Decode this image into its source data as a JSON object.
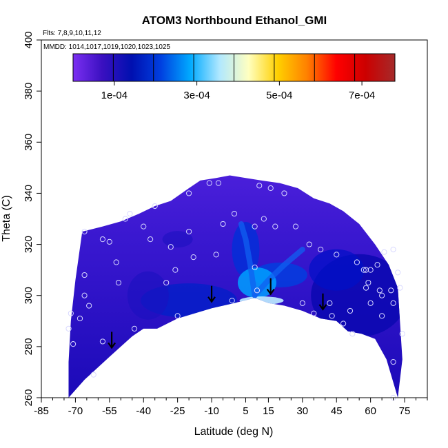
{
  "chart_data": {
    "type": "heatmap",
    "title": "ATOM3 Northbound Ethanol_GMI",
    "annotations": [
      "Flts: 7,8,9,10,11,12",
      "MMDD: 1014,1017,1019,1020,1023,1025"
    ],
    "xlabel": "Latitude (deg N)",
    "ylabel": "Theta (C)",
    "xlim": [
      -85,
      85
    ],
    "ylim": [
      260,
      400
    ],
    "x_ticks": [
      -85,
      -70,
      -55,
      -40,
      -25,
      -10,
      5,
      15,
      30,
      45,
      60,
      75
    ],
    "y_ticks": [
      260,
      280,
      300,
      320,
      340,
      360,
      380,
      400
    ],
    "colorbar": {
      "range": [
        0,
        0.00078
      ],
      "tick_values": [
        0.0001,
        0.0003,
        0.0005,
        0.0007
      ],
      "tick_labels": [
        "1e-04",
        "3e-04",
        "5e-04",
        "7e-04"
      ],
      "colors": [
        "#7b2ff2",
        "#3a10c0",
        "#0010b0",
        "#0040e0",
        "#00aaff",
        "#b0e8ff",
        "#ffffc0",
        "#ffd000",
        "#ff8000",
        "#ff0000",
        "#cc0000",
        "#a52a2a"
      ]
    },
    "domain_boundary": {
      "bottom": [
        [
          -73,
          260
        ],
        [
          -66,
          267
        ],
        [
          -55,
          276
        ],
        [
          -45,
          284
        ],
        [
          -40,
          287
        ],
        [
          -34,
          287
        ],
        [
          -25,
          291
        ],
        [
          -10,
          295
        ],
        [
          0,
          297
        ],
        [
          9,
          299
        ],
        [
          15,
          297
        ],
        [
          22,
          296
        ],
        [
          30,
          294
        ],
        [
          38,
          291
        ],
        [
          45,
          290
        ],
        [
          50,
          286
        ],
        [
          56,
          285
        ],
        [
          62,
          283
        ],
        [
          67,
          275
        ],
        [
          72,
          260
        ]
      ],
      "top": [
        [
          -73,
          274
        ],
        [
          -72,
          290
        ],
        [
          -70,
          306
        ],
        [
          -67,
          325
        ],
        [
          -58,
          327
        ],
        [
          -50,
          329
        ],
        [
          -42,
          332
        ],
        [
          -35,
          335
        ],
        [
          -28,
          337
        ],
        [
          -20,
          342
        ],
        [
          -15,
          345
        ],
        [
          -8,
          346
        ],
        [
          -2,
          347
        ],
        [
          5,
          346
        ],
        [
          12,
          345
        ],
        [
          20,
          344
        ],
        [
          28,
          342
        ],
        [
          35,
          338
        ],
        [
          42,
          336
        ],
        [
          48,
          333
        ],
        [
          55,
          328
        ],
        [
          62,
          320
        ],
        [
          68,
          312
        ],
        [
          72,
          303
        ],
        [
          74,
          275
        ]
      ]
    },
    "peak": {
      "lat": 9,
      "theta": 302,
      "value": 0.00078
    },
    "plume_ridges": [
      [
        [
          9,
          300
        ],
        [
          7,
          312
        ],
        [
          5,
          322
        ],
        [
          3,
          328
        ]
      ],
      [
        [
          9,
          300
        ],
        [
          15,
          306
        ],
        [
          22,
          312
        ],
        [
          30,
          318
        ]
      ]
    ],
    "observation_points": [
      [
        -73,
        287
      ],
      [
        -72,
        293
      ],
      [
        -71,
        281
      ],
      [
        -68,
        291
      ],
      [
        -66,
        325
      ],
      [
        -66,
        308
      ],
      [
        -66,
        300
      ],
      [
        -64,
        296
      ],
      [
        -58,
        322
      ],
      [
        -55,
        321
      ],
      [
        -58,
        282
      ],
      [
        -62,
        269
      ],
      [
        -52,
        313
      ],
      [
        -51,
        305
      ],
      [
        -48,
        330
      ],
      [
        -46,
        332
      ],
      [
        -44,
        287
      ],
      [
        -40,
        327
      ],
      [
        -37,
        322
      ],
      [
        -35,
        335
      ],
      [
        -30,
        305
      ],
      [
        -28,
        319
      ],
      [
        -26,
        310
      ],
      [
        -25,
        292
      ],
      [
        -20,
        325
      ],
      [
        -20,
        340
      ],
      [
        -18,
        315
      ],
      [
        -11,
        344
      ],
      [
        -8,
        316
      ],
      [
        -7,
        344
      ],
      [
        -5,
        328
      ],
      [
        0,
        332
      ],
      [
        -1,
        298
      ],
      [
        9,
        327
      ],
      [
        9,
        311
      ],
      [
        10,
        302
      ],
      [
        11,
        343
      ],
      [
        13,
        330
      ],
      [
        18,
        327
      ],
      [
        16,
        342
      ],
      [
        22,
        340
      ],
      [
        27,
        327
      ],
      [
        30,
        297
      ],
      [
        33,
        320
      ],
      [
        35,
        293
      ],
      [
        38,
        318
      ],
      [
        42,
        297
      ],
      [
        43,
        292
      ],
      [
        45,
        316
      ],
      [
        48,
        289
      ],
      [
        51,
        294
      ],
      [
        52,
        285
      ],
      [
        54,
        313
      ],
      [
        57,
        310
      ],
      [
        58,
        303
      ],
      [
        59,
        305
      ],
      [
        58,
        310
      ],
      [
        60,
        297
      ],
      [
        63,
        312
      ],
      [
        64,
        302
      ],
      [
        65,
        300
      ],
      [
        65,
        292
      ],
      [
        69,
        302
      ],
      [
        70,
        297
      ],
      [
        72,
        309
      ],
      [
        73,
        303
      ],
      [
        70,
        274
      ],
      [
        70,
        260
      ],
      [
        74,
        285
      ],
      [
        70,
        318
      ],
      [
        66,
        317
      ],
      [
        60,
        310
      ]
    ],
    "arrows": [
      {
        "lat": -54,
        "theta": 282
      },
      {
        "lat": -10,
        "theta": 300
      },
      {
        "lat": 16,
        "theta": 303
      },
      {
        "lat": 39,
        "theta": 297
      }
    ],
    "grid": false
  }
}
